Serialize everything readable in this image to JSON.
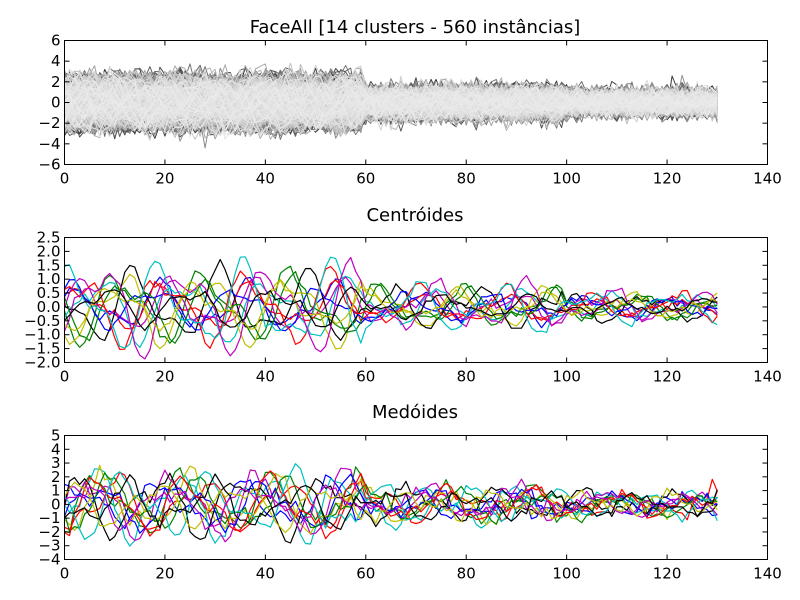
{
  "chart_data": [
    {
      "type": "line",
      "title": "FaceAll [14 clusters - 560 instâncias]",
      "xlim": [
        0,
        140
      ],
      "ylim": [
        -6,
        6
      ],
      "xticks": [
        0,
        20,
        40,
        60,
        80,
        100,
        120,
        140
      ],
      "yticks": [
        -6,
        -4,
        -2,
        0,
        2,
        4,
        6
      ],
      "series_count": 560,
      "series_length": 131,
      "colors": "grayscale",
      "grid": false
    },
    {
      "type": "line",
      "title": "Centróides",
      "xlim": [
        0,
        140
      ],
      "ylim": [
        -2.0,
        2.5
      ],
      "xticks": [
        0,
        20,
        40,
        60,
        80,
        100,
        120,
        140
      ],
      "yticks": [
        -2.0,
        -1.5,
        -1.0,
        -0.5,
        0.0,
        0.5,
        1.0,
        1.5,
        2.0,
        2.5
      ],
      "series_count": 14,
      "series_length": 131,
      "colors": [
        "#0000ff",
        "#008000",
        "#ff0000",
        "#00bfbf",
        "#bf00bf",
        "#bfbf00",
        "#000000"
      ],
      "grid": false
    },
    {
      "type": "line",
      "title": "Medóides",
      "xlim": [
        0,
        140
      ],
      "ylim": [
        -4,
        5
      ],
      "xticks": [
        0,
        20,
        40,
        60,
        80,
        100,
        120,
        140
      ],
      "yticks": [
        -4,
        -3,
        -2,
        -1,
        0,
        1,
        2,
        3,
        4,
        5
      ],
      "series_count": 14,
      "series_length": 131,
      "colors": [
        "#0000ff",
        "#008000",
        "#ff0000",
        "#00bfbf",
        "#bf00bf",
        "#bfbf00",
        "#000000"
      ],
      "grid": false
    }
  ]
}
